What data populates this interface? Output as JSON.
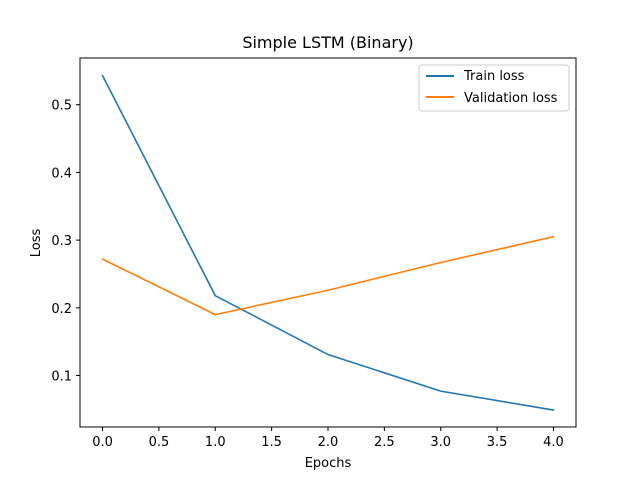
{
  "chart_data": {
    "type": "line",
    "title": "Simple LSTM (Binary)",
    "xlabel": "Epochs",
    "ylabel": "Loss",
    "x": [
      0,
      1,
      2,
      3,
      4
    ],
    "series": [
      {
        "name": "Train loss",
        "color": "#1f77b4",
        "values": [
          0.543,
          0.218,
          0.131,
          0.077,
          0.049
        ]
      },
      {
        "name": "Validation loss",
        "color": "#ff7f0e",
        "values": [
          0.272,
          0.19,
          0.226,
          0.267,
          0.305
        ]
      }
    ],
    "xlim": [
      -0.2,
      4.2
    ],
    "ylim": [
      0.024,
      0.569
    ],
    "xticks": [
      "0.0",
      "0.5",
      "1.0",
      "1.5",
      "2.0",
      "2.5",
      "3.0",
      "3.5",
      "4.0"
    ],
    "yticks": [
      "0.1",
      "0.2",
      "0.3",
      "0.4",
      "0.5"
    ],
    "grid": false,
    "legend_position": "top-right"
  }
}
